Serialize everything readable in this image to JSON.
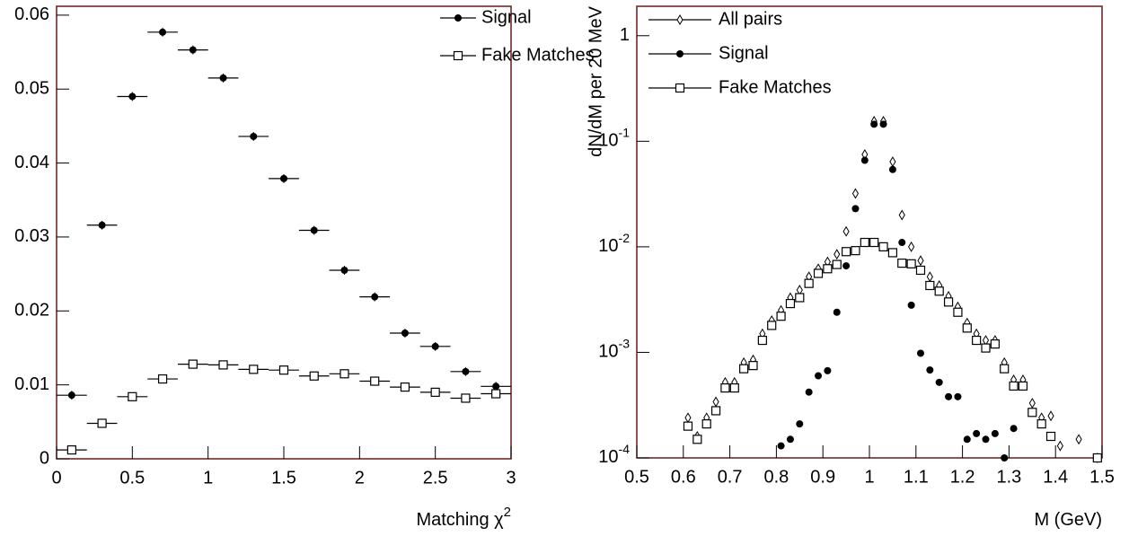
{
  "chart_data": [
    {
      "type": "scatter",
      "xlabel": "Matching χ",
      "xlabel_sup": "2",
      "xlim": [
        0,
        3
      ],
      "ylim": [
        0,
        0.0612
      ],
      "xticks": [
        0,
        0.5,
        1,
        1.5,
        2,
        2.5,
        3
      ],
      "yticks": [
        0,
        0.01,
        0.02,
        0.03,
        0.04,
        0.05,
        0.06
      ],
      "x": [
        0.1,
        0.3,
        0.5,
        0.7,
        0.9,
        1.1,
        1.3,
        1.5,
        1.7,
        1.9,
        2.1,
        2.3,
        2.5,
        2.7,
        2.9
      ],
      "xerr": 0.1,
      "series": [
        {
          "name": "Signal",
          "marker": "circle",
          "color": "#000000",
          "yerr": 0.0006,
          "values": [
            0.0086,
            0.0316,
            0.049,
            0.0577,
            0.0553,
            0.0515,
            0.0436,
            0.0379,
            0.0309,
            0.0255,
            0.0219,
            0.017,
            0.0152,
            0.0118,
            0.0098
          ]
        },
        {
          "name": "Fake Matches",
          "marker": "square",
          "color": "#000000",
          "yerr": 0.0003,
          "values": [
            0.0012,
            0.0048,
            0.0084,
            0.0108,
            0.0128,
            0.0127,
            0.0121,
            0.012,
            0.0112,
            0.0115,
            0.0105,
            0.0097,
            0.009,
            0.0082,
            0.0088
          ]
        }
      ]
    },
    {
      "type": "scatter",
      "log_y": true,
      "ylabel": "dN/dM per 20 MeV",
      "xlabel": "M (GeV)",
      "xlim": [
        0.5,
        1.5
      ],
      "ylim": [
        0.0001,
        1.9
      ],
      "xticks": [
        0.5,
        0.6,
        0.7,
        0.8,
        0.9,
        1,
        1.1,
        1.2,
        1.3,
        1.4,
        1.5
      ],
      "yticks": [
        {
          "value": 0.0001,
          "label": "10",
          "exponent": "-4"
        },
        {
          "value": 0.001,
          "label": "10",
          "exponent": "-3"
        },
        {
          "value": 0.01,
          "label": "10",
          "exponent": "-2"
        },
        {
          "value": 0.1,
          "label": "10",
          "exponent": "-1"
        },
        1
      ],
      "x": [
        0.61,
        0.63,
        0.65,
        0.67,
        0.69,
        0.71,
        0.73,
        0.75,
        0.77,
        0.79,
        0.81,
        0.83,
        0.85,
        0.87,
        0.89,
        0.91,
        0.93,
        0.95,
        0.97,
        0.99,
        1.01,
        1.03,
        1.05,
        1.07,
        1.09,
        1.11,
        1.13,
        1.15,
        1.17,
        1.19,
        1.21,
        1.23,
        1.25,
        1.27,
        1.29,
        1.31,
        1.33,
        1.35,
        1.37,
        1.39,
        1.41,
        1.43,
        1.45,
        1.47,
        1.49
      ],
      "series": [
        {
          "name": "All pairs",
          "marker": "diamond",
          "color": "#000000",
          "values": [
            0.00024,
            0.00016,
            0.00024,
            0.00034,
            0.00052,
            0.00052,
            0.0008,
            0.00085,
            0.0015,
            0.002,
            0.0025,
            0.0033,
            0.0039,
            0.0052,
            0.0062,
            0.0072,
            0.0085,
            0.014,
            0.032,
            0.075,
            0.155,
            0.155,
            0.064,
            0.02,
            0.01,
            0.0074,
            0.0052,
            0.0043,
            0.0034,
            0.0027,
            0.0019,
            0.0015,
            0.0013,
            0.0013,
            0.0008,
            0.00055,
            0.00055,
            0.00033,
            0.00024,
            0.00025,
            0.00013,
            null,
            0.00015,
            null,
            0.0001
          ]
        },
        {
          "name": "Signal",
          "marker": "circle",
          "color": "#000000",
          "values": [
            null,
            null,
            null,
            null,
            null,
            null,
            null,
            null,
            null,
            null,
            0.00013,
            0.00015,
            0.00021,
            0.00042,
            0.0006,
            0.00067,
            0.0024,
            0.0066,
            0.023,
            0.066,
            0.145,
            0.145,
            0.054,
            0.011,
            0.0028,
            0.00098,
            0.00068,
            0.00052,
            0.00038,
            0.00038,
            0.00015,
            0.00017,
            0.00015,
            0.00017,
            0.0001,
            0.00019,
            null,
            null,
            null,
            null,
            null,
            null,
            null,
            null,
            null
          ]
        },
        {
          "name": "Fake Matches",
          "marker": "square",
          "color": "#000000",
          "values": [
            0.0002,
            0.00015,
            0.00021,
            0.00028,
            0.00046,
            0.00046,
            0.0007,
            0.00075,
            0.0013,
            0.0018,
            0.0022,
            0.0029,
            0.0033,
            0.0045,
            0.0056,
            0.0062,
            0.0068,
            0.009,
            0.0092,
            0.011,
            0.011,
            0.01,
            0.0088,
            0.007,
            0.0069,
            0.006,
            0.0043,
            0.0038,
            0.003,
            0.0024,
            0.0017,
            0.0013,
            0.0011,
            0.0012,
            0.0007,
            0.00048,
            0.00048,
            0.00027,
            0.00021,
            0.00016,
            null,
            null,
            null,
            null,
            0.0001
          ]
        }
      ]
    }
  ]
}
